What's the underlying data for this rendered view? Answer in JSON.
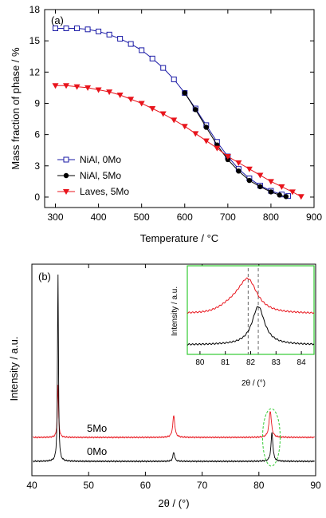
{
  "chart_data": [
    {
      "panel_label": "(a)",
      "type": "scatter",
      "xlabel": "Temperature / °C",
      "ylabel": "Mass fraction of phase / %",
      "xlim": [
        275,
        900
      ],
      "ylim": [
        -1,
        18
      ],
      "xticks": [
        300,
        400,
        500,
        600,
        700,
        800,
        900
      ],
      "yticks": [
        0,
        3,
        6,
        9,
        12,
        15,
        18
      ],
      "legend_position": "lower-left",
      "series": [
        {
          "name": "NiAl, 0Mo",
          "marker": "open-square",
          "color": "#1a1aa6",
          "x": [
            300,
            325,
            350,
            375,
            400,
            425,
            450,
            475,
            500,
            525,
            550,
            575,
            600,
            625,
            650,
            675,
            700,
            725,
            750,
            775,
            800,
            825,
            840
          ],
          "y": [
            16.2,
            16.2,
            16.2,
            16.1,
            15.9,
            15.6,
            15.2,
            14.7,
            14.1,
            13.3,
            12.4,
            11.3,
            10.0,
            8.5,
            6.9,
            5.3,
            3.9,
            2.7,
            1.8,
            1.1,
            0.6,
            0.25,
            0.1
          ]
        },
        {
          "name": "NiAl, 5Mo",
          "marker": "filled-circle",
          "color": "#000000",
          "x": [
            600,
            625,
            650,
            675,
            700,
            725,
            750,
            775,
            800,
            820,
            835
          ],
          "y": [
            10.0,
            8.4,
            6.7,
            5.0,
            3.6,
            2.5,
            1.6,
            1.0,
            0.5,
            0.2,
            0.05
          ]
        },
        {
          "name": "Laves, 5Mo",
          "marker": "filled-triangle-down",
          "color": "#e8141c",
          "x": [
            300,
            325,
            350,
            375,
            400,
            425,
            450,
            475,
            500,
            525,
            550,
            575,
            600,
            625,
            650,
            675,
            700,
            725,
            750,
            775,
            800,
            825,
            850,
            870
          ],
          "y": [
            10.7,
            10.7,
            10.6,
            10.5,
            10.3,
            10.1,
            9.8,
            9.4,
            9.0,
            8.5,
            8.0,
            7.4,
            6.8,
            6.1,
            5.4,
            4.7,
            3.9,
            3.3,
            2.7,
            2.1,
            1.5,
            1.0,
            0.5,
            0.05
          ]
        }
      ]
    },
    {
      "panel_label": "(b)",
      "type": "line",
      "xlabel": "2θ / (°)",
      "ylabel": "Intensity / a.u.",
      "xlim": [
        40,
        90
      ],
      "xticks": [
        40,
        50,
        60,
        70,
        80,
        90
      ],
      "y_ticks_shown": false,
      "series": [
        {
          "name": "5Mo",
          "color": "#e8141c",
          "baseline": 0.9,
          "peaks": [
            {
              "position": 44.6,
              "height": 2.2,
              "width": 0.12
            },
            {
              "position": 65.0,
              "height": 0.9,
              "width": 0.22
            },
            {
              "position": 82.0,
              "height": 1.1,
              "width": 0.25
            }
          ]
        },
        {
          "name": "0Mo",
          "color": "#000000",
          "baseline": 0.0,
          "peaks": [
            {
              "position": 44.6,
              "height": 7.8,
              "width": 0.1
            },
            {
              "position": 65.0,
              "height": 0.38,
              "width": 0.18
            },
            {
              "position": 82.3,
              "height": 1.2,
              "width": 0.2
            }
          ]
        }
      ],
      "annotations": [
        {
          "type": "dashed-ellipse",
          "color": "#33cc33",
          "center_x": 82.2,
          "note": "highlighted peak region"
        }
      ],
      "inset": {
        "xlabel": "2θ / (°)",
        "ylabel": "Intensity / a.u.",
        "xlim": [
          79.5,
          84.5
        ],
        "xticks": [
          80,
          81,
          82,
          83,
          84
        ],
        "frame_color": "#33cc33",
        "dashed_lines_x": [
          81.9,
          82.3
        ],
        "series": [
          {
            "name": "5Mo",
            "color": "#e8141c",
            "baseline": 1.05,
            "peak_position": 81.9,
            "peak_height": 0.95,
            "width": 0.45
          },
          {
            "name": "0Mo",
            "color": "#000000",
            "baseline": 0.0,
            "peak_position": 82.3,
            "peak_height": 1.2,
            "width": 0.3
          }
        ]
      }
    }
  ]
}
